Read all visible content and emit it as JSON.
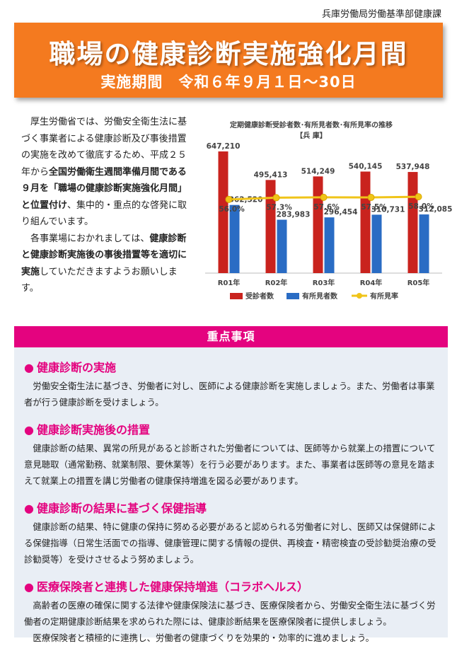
{
  "issuer": "兵庫労働局労働基準部健康課",
  "banner": {
    "title": "職場の健康診断実施強化月間",
    "period": "実施期間　令和６年９月１日〜30日"
  },
  "intro": {
    "p1_before": "厚生労働省では、労働安全衛生法に基づく事業者による健康診断及び事後措置の実施を改めて徹底するため、平成２５年から",
    "p1_bold": "全国労働衛生週間準備月間である９月を「職場の健康診断実施強化月間」と位置付け",
    "p1_after": "、集中的・重点的な啓発に取り組んでいます。",
    "p2_before": "各事業場におかれましては、",
    "p2_bold": "健康診断と健康診断実施後の事後措置等を適切に実施",
    "p2_after": "していただきますようお願いします。"
  },
  "chart_data": {
    "type": "bar",
    "title": "定期健康診断受診者数･有所見者数･有所見率の推移",
    "subtitle": "【兵 庫】",
    "categories": [
      "R01年",
      "R02年",
      "R03年",
      "R04年",
      "R05年"
    ],
    "series": [
      {
        "name": "受診者数",
        "type": "bar",
        "color": "#c9231e",
        "values": [
          647210,
          495413,
          514249,
          540145,
          537948
        ],
        "labels": [
          "647,210",
          "495,413",
          "514,249",
          "540,145",
          "537,948"
        ]
      },
      {
        "name": "有所見者数",
        "type": "bar",
        "color": "#2a6cc4",
        "values": [
          362520,
          283983,
          296454,
          310731,
          312085
        ],
        "labels": [
          "362,520",
          "283,983",
          "296,454",
          "310,731",
          "312,085"
        ]
      },
      {
        "name": "有所見率",
        "type": "line",
        "color": "#f0c419",
        "values": [
          56.0,
          57.3,
          57.6,
          57.5,
          58.0
        ],
        "labels": [
          "56.0%",
          "57.3%",
          "57.6%",
          "57.5%",
          "58.0%"
        ]
      }
    ],
    "ylim": [
      0,
      700000
    ],
    "y2lim": [
      0,
      100
    ],
    "grid": false,
    "legend": "bottom"
  },
  "focus": {
    "heading": "重点事項",
    "bullet": "●",
    "items": [
      {
        "title": "健康診断の実施",
        "body": [
          "労働安全衛生法に基づき、労働者に対し、医師による健康診断を実施しましょう。また、労働者は事業者が行う健康診断を受けましょう。"
        ]
      },
      {
        "title": "健康診断実施後の措置",
        "body": [
          "健康診断の結果、異常の所見があると診断された労働者については、医師等から就業上の措置について意見聴取（通常勤務、就業制限、要休業等）を行う必要があります。また、事業者は医師等の意見を踏まえて就業上の措置を講じ労働者の健康保持増進を図る必要があります。"
        ]
      },
      {
        "title": "健康診断の結果に基づく保健指導",
        "body": [
          "健康診断の結果、特に健康の保持に努める必要があると認められる労働者に対し、医師又は保健師による保健指導（日常生活面での指導、健康管理に関する情報の提供、再検査・精密検査の受診勧奨治療の受診勧奨等）を受けさせるよう努めましょう。"
        ]
      },
      {
        "title": "医療保険者と連携した健康保持増進（コラボヘルス）",
        "body": [
          "高齢者の医療の確保に関する法律や健康保険法に基づき、医療保険者から、労働安全衛生法に基づく労働者の定期健康診断結果を求められた際には、健康診断結果を医療保険者に提供しましょう。",
          "医療保険者と積極的に連携し、労働者の健康づくりを効果的・効率的に進めましょう。"
        ]
      }
    ]
  }
}
